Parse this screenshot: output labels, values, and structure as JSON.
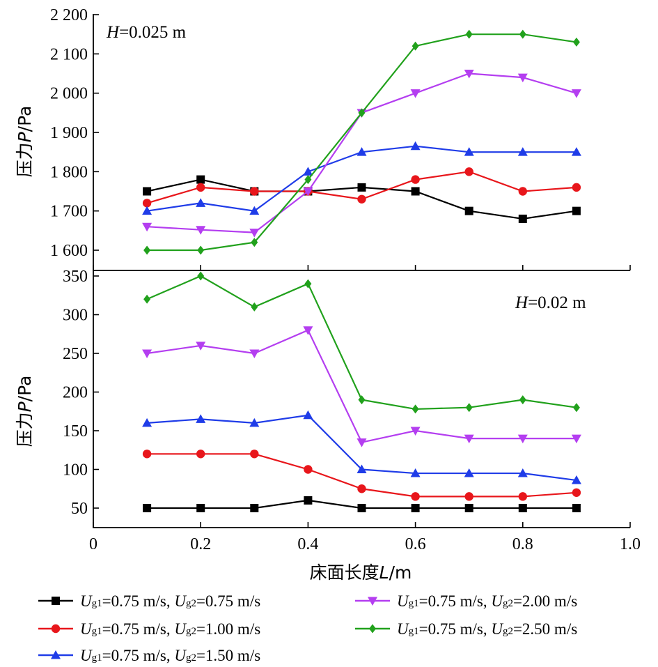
{
  "chart_data": [
    {
      "type": "line",
      "annotation": "H=0.025 m",
      "annotation_parts": {
        "var": "H",
        "rest": "=0.025 m"
      },
      "ylabel": {
        "prefix": "压力",
        "var": "P",
        "unit": "/Pa"
      },
      "ylim": [
        1550,
        2200
      ],
      "yticks": [
        1600,
        1700,
        1800,
        1900,
        2000,
        2100,
        2200
      ],
      "ytick_labels": [
        "1 600",
        "1 700",
        "1 800",
        "1 900",
        "2 000",
        "2 100",
        "2 200"
      ],
      "x": [
        0.1,
        0.2,
        0.3,
        0.4,
        0.5,
        0.6,
        0.7,
        0.8,
        0.9
      ],
      "series": [
        {
          "name": "Ug1=0.75 m/s, Ug2=0.75 m/s",
          "color": "#000000",
          "marker": "square",
          "values": [
            1750,
            1780,
            1750,
            1750,
            1760,
            1750,
            1700,
            1680,
            1700
          ]
        },
        {
          "name": "Ug1=0.75 m/s, Ug2=1.00 m/s",
          "color": "#e8161b",
          "marker": "circle",
          "values": [
            1720,
            1760,
            1750,
            1750,
            1730,
            1780,
            1800,
            1750,
            1760
          ]
        },
        {
          "name": "Ug1=0.75 m/s, Ug2=1.50 m/s",
          "color": "#1f3ce8",
          "marker": "triangle-up",
          "values": [
            1700,
            1720,
            1700,
            1800,
            1850,
            1865,
            1850,
            1850,
            1850
          ]
        },
        {
          "name": "Ug1=0.75 m/s, Ug2=2.00 m/s",
          "color": "#b43ef0",
          "marker": "triangle-down",
          "values": [
            1660,
            1652,
            1645,
            1750,
            1950,
            2000,
            2050,
            2040,
            2000
          ]
        },
        {
          "name": "Ug1=0.75 m/s, Ug2=2.50 m/s",
          "color": "#21a11c",
          "marker": "diamond",
          "values": [
            1600,
            1600,
            1620,
            1780,
            1950,
            2120,
            2150,
            2150,
            2130
          ]
        }
      ]
    },
    {
      "type": "line",
      "annotation": "H=0.02 m",
      "annotation_parts": {
        "var": "H",
        "rest": "=0.02 m"
      },
      "ylabel": {
        "prefix": "压力",
        "var": "P",
        "unit": "/Pa"
      },
      "ylim": [
        25,
        350
      ],
      "yticks": [
        50,
        100,
        150,
        200,
        250,
        300,
        350
      ],
      "ytick_labels": [
        "50",
        "100",
        "150",
        "200",
        "250",
        "300",
        "350"
      ],
      "xlabel": {
        "prefix": "床面长度",
        "var": "L",
        "unit": "/m"
      },
      "xlim": [
        0,
        1.0
      ],
      "xticks": [
        0,
        0.2,
        0.4,
        0.6,
        0.8,
        1.0
      ],
      "xtick_labels": [
        "0",
        "0.2",
        "0.4",
        "0.6",
        "0.8",
        "1.0"
      ],
      "x": [
        0.1,
        0.2,
        0.3,
        0.4,
        0.5,
        0.6,
        0.7,
        0.8,
        0.9
      ],
      "series": [
        {
          "name": "Ug1=0.75 m/s, Ug2=0.75 m/s",
          "color": "#000000",
          "marker": "square",
          "values": [
            50,
            50,
            50,
            60,
            50,
            50,
            50,
            50,
            50
          ]
        },
        {
          "name": "Ug1=0.75 m/s, Ug2=1.00 m/s",
          "color": "#e8161b",
          "marker": "circle",
          "values": [
            120,
            120,
            120,
            100,
            75,
            65,
            65,
            65,
            70
          ]
        },
        {
          "name": "Ug1=0.75 m/s, Ug2=1.50 m/s",
          "color": "#1f3ce8",
          "marker": "triangle-up",
          "values": [
            160,
            165,
            160,
            170,
            100,
            95,
            95,
            95,
            86
          ]
        },
        {
          "name": "Ug1=0.75 m/s, Ug2=2.00 m/s",
          "color": "#b43ef0",
          "marker": "triangle-down",
          "values": [
            250,
            260,
            250,
            280,
            135,
            150,
            140,
            140,
            140
          ]
        },
        {
          "name": "Ug1=0.75 m/s, Ug2=2.50 m/s",
          "color": "#21a11c",
          "marker": "diamond",
          "values": [
            320,
            350,
            310,
            340,
            190,
            178,
            180,
            190,
            180
          ]
        }
      ]
    }
  ],
  "legend": {
    "placement": "bottom",
    "items": [
      {
        "color": "#000000",
        "marker": "square",
        "u1": "U",
        "s1": "g1",
        "t1": "=0.75 m/s, ",
        "u2": "U",
        "s2": "g2",
        "t2": "=0.75 m/s"
      },
      {
        "color": "#e8161b",
        "marker": "circle",
        "u1": "U",
        "s1": "g1",
        "t1": "=0.75 m/s, ",
        "u2": "U",
        "s2": "g2",
        "t2": "=1.00 m/s"
      },
      {
        "color": "#1f3ce8",
        "marker": "triangle-up",
        "u1": "U",
        "s1": "g1",
        "t1": "=0.75 m/s, ",
        "u2": "U",
        "s2": "g2",
        "t2": "=1.50 m/s"
      },
      {
        "color": "#b43ef0",
        "marker": "triangle-down",
        "u1": "U",
        "s1": "g1",
        "t1": "=0.75 m/s, ",
        "u2": "U",
        "s2": "g2",
        "t2": "=2.00 m/s"
      },
      {
        "color": "#21a11c",
        "marker": "diamond",
        "u1": "U",
        "s1": "g1",
        "t1": "=0.75 m/s, ",
        "u2": "U",
        "s2": "g2",
        "t2": "=2.50 m/s"
      }
    ]
  }
}
